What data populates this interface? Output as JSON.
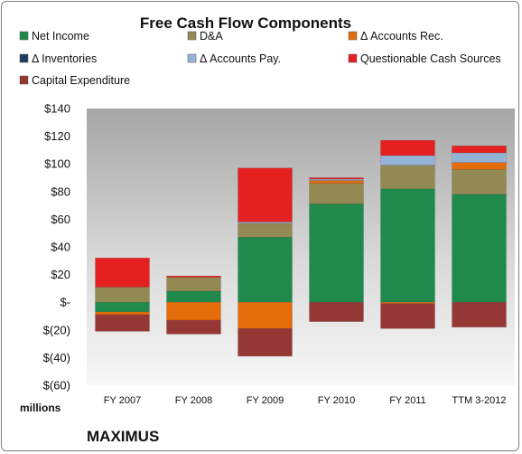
{
  "chart_data": {
    "type": "bar",
    "stacked": true,
    "title": "Free Cash Flow Components",
    "categories": [
      "FY 2007",
      "FY 2008",
      "FY 2009",
      "FY 2010",
      "FY 2011",
      "TTM 3-2012"
    ],
    "series": [
      {
        "name": "Net Income",
        "color": "#1f8a4c",
        "values": [
          -7,
          8,
          47,
          71,
          82,
          78
        ]
      },
      {
        "name": "D&A",
        "color": "#938953",
        "values": [
          11,
          10,
          10,
          15,
          17,
          18
        ]
      },
      {
        "name": "Δ Accounts Rec.",
        "color": "#e46c0a",
        "values": [
          -2,
          -13,
          -19,
          2,
          -1,
          5
        ]
      },
      {
        "name": "Δ Inventories",
        "color": "#1f3864",
        "values": [
          0,
          0,
          0,
          0,
          0,
          0
        ]
      },
      {
        "name": "Δ Accounts Pay.",
        "color": "#95b3d7",
        "values": [
          0,
          0,
          1,
          1,
          7,
          7
        ]
      },
      {
        "name": "Questionable Cash Sources",
        "color": "#e52020",
        "values": [
          21,
          1,
          39,
          1,
          11,
          5
        ]
      },
      {
        "name": "Capital Expenditure",
        "color": "#953735",
        "values": [
          -12,
          -10,
          -20,
          -14,
          -18,
          -18
        ]
      }
    ],
    "ylim": [
      -60,
      140
    ],
    "yticks": [
      -60,
      -40,
      -20,
      0,
      20,
      40,
      60,
      80,
      100,
      120,
      140
    ],
    "ytick_labels": [
      "$(60)",
      "$(40)",
      "$(20)",
      "$-",
      "$20",
      "$40",
      "$60",
      "$80",
      "$100",
      "$120",
      "$140"
    ],
    "y_units": "millions",
    "legend_position": "top",
    "company": "MAXIMUS",
    "grid": false
  }
}
